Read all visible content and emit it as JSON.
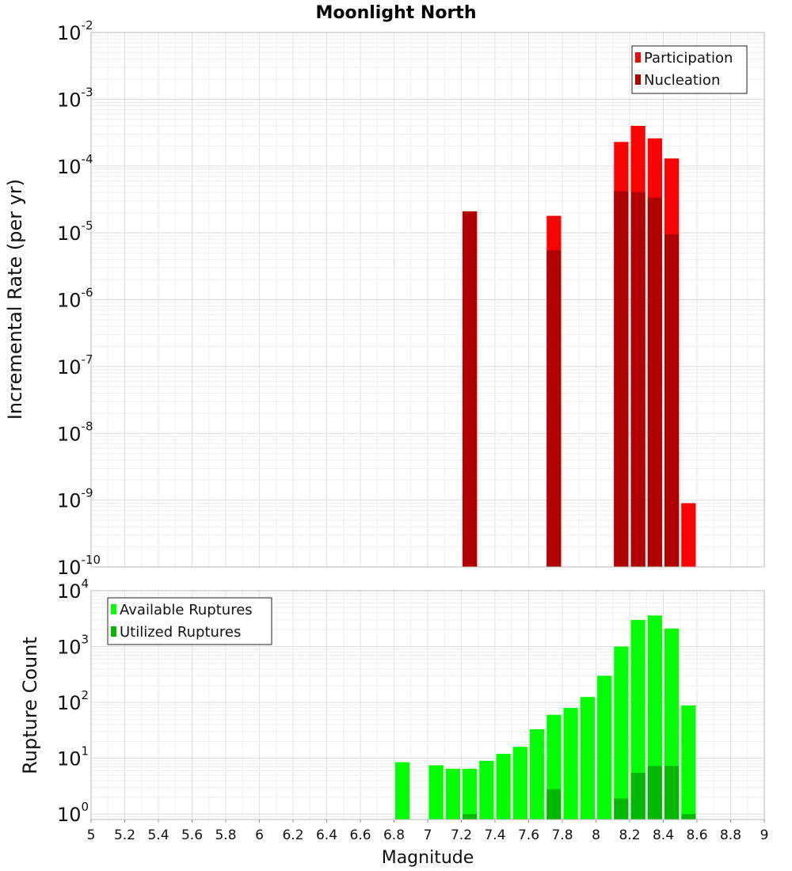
{
  "chart_data": [
    {
      "type": "bar",
      "title": "Moonlight North",
      "xlabel": "",
      "ylabel": "Incremental Rate (per yr)",
      "xlim": [
        5,
        9
      ],
      "ylim": [
        1e-10,
        0.01
      ],
      "yscale": "log",
      "y_ticks": [
        {
          "base": "10",
          "exp": "-10",
          "value": 1e-10
        },
        {
          "base": "10",
          "exp": "-9",
          "value": 1e-09
        },
        {
          "base": "10",
          "exp": "-8",
          "value": 1e-08
        },
        {
          "base": "10",
          "exp": "-7",
          "value": 1e-07
        },
        {
          "base": "10",
          "exp": "-6",
          "value": 1e-06
        },
        {
          "base": "10",
          "exp": "-5",
          "value": 1e-05
        },
        {
          "base": "10",
          "exp": "-4",
          "value": 0.0001
        },
        {
          "base": "10",
          "exp": "-3",
          "value": 0.001
        },
        {
          "base": "10",
          "exp": "-2",
          "value": 0.01
        }
      ],
      "grid": true,
      "legend_position": "top-right",
      "series": [
        {
          "name": "Participation",
          "color": "#ff0000",
          "points": [
            {
              "x": 7.25,
              "y": 2.1e-05
            },
            {
              "x": 7.75,
              "y": 1.8e-05
            },
            {
              "x": 8.15,
              "y": 0.00023
            },
            {
              "x": 8.25,
              "y": 0.0004
            },
            {
              "x": 8.35,
              "y": 0.00026
            },
            {
              "x": 8.45,
              "y": 0.00013
            },
            {
              "x": 8.55,
              "y": 9e-10
            }
          ]
        },
        {
          "name": "Nucleation",
          "color": "#b00000",
          "points": [
            {
              "x": 7.25,
              "y": 2.1e-05
            },
            {
              "x": 7.75,
              "y": 5.5e-06
            },
            {
              "x": 8.15,
              "y": 4.2e-05
            },
            {
              "x": 8.25,
              "y": 4.1e-05
            },
            {
              "x": 8.35,
              "y": 3.4e-05
            },
            {
              "x": 8.45,
              "y": 9.5e-06
            }
          ]
        }
      ]
    },
    {
      "type": "bar",
      "title": "",
      "xlabel": "Magnitude",
      "ylabel": "Rupture Count",
      "xlim": [
        5,
        9
      ],
      "ylim": [
        0.8,
        10000
      ],
      "yscale": "log",
      "x_ticks": [
        "5",
        "5.2",
        "5.4",
        "5.6",
        "5.8",
        "6",
        "6.2",
        "6.4",
        "6.6",
        "6.8",
        "7",
        "7.2",
        "7.4",
        "7.6",
        "7.8",
        "8",
        "8.2",
        "8.4",
        "8.6",
        "8.8",
        "9"
      ],
      "y_ticks": [
        {
          "base": "10",
          "exp": "0",
          "value": 1
        },
        {
          "base": "10",
          "exp": "1",
          "value": 10
        },
        {
          "base": "10",
          "exp": "2",
          "value": 100
        },
        {
          "base": "10",
          "exp": "3",
          "value": 1000
        },
        {
          "base": "10",
          "exp": "4",
          "value": 10000
        }
      ],
      "grid": true,
      "legend_position": "top-left",
      "series": [
        {
          "name": "Available Ruptures",
          "color": "#00ff00",
          "points": [
            {
              "x": 6.85,
              "y": 8.5
            },
            {
              "x": 7.05,
              "y": 7.5
            },
            {
              "x": 7.15,
              "y": 6.5
            },
            {
              "x": 7.25,
              "y": 6.5
            },
            {
              "x": 7.35,
              "y": 9
            },
            {
              "x": 7.45,
              "y": 12
            },
            {
              "x": 7.55,
              "y": 16
            },
            {
              "x": 7.65,
              "y": 33
            },
            {
              "x": 7.75,
              "y": 60
            },
            {
              "x": 7.85,
              "y": 80
            },
            {
              "x": 7.95,
              "y": 125
            },
            {
              "x": 8.05,
              "y": 300
            },
            {
              "x": 8.15,
              "y": 1000
            },
            {
              "x": 8.25,
              "y": 3000
            },
            {
              "x": 8.35,
              "y": 3600
            },
            {
              "x": 8.45,
              "y": 2100
            },
            {
              "x": 8.55,
              "y": 88
            }
          ]
        },
        {
          "name": "Utilized Ruptures",
          "color": "#00b800",
          "points": [
            {
              "x": 7.25,
              "y": 1
            },
            {
              "x": 7.75,
              "y": 2.8
            },
            {
              "x": 8.15,
              "y": 1.9
            },
            {
              "x": 8.25,
              "y": 5.5
            },
            {
              "x": 8.35,
              "y": 7.3
            },
            {
              "x": 8.45,
              "y": 7.3
            },
            {
              "x": 8.55,
              "y": 1
            }
          ]
        }
      ]
    }
  ]
}
